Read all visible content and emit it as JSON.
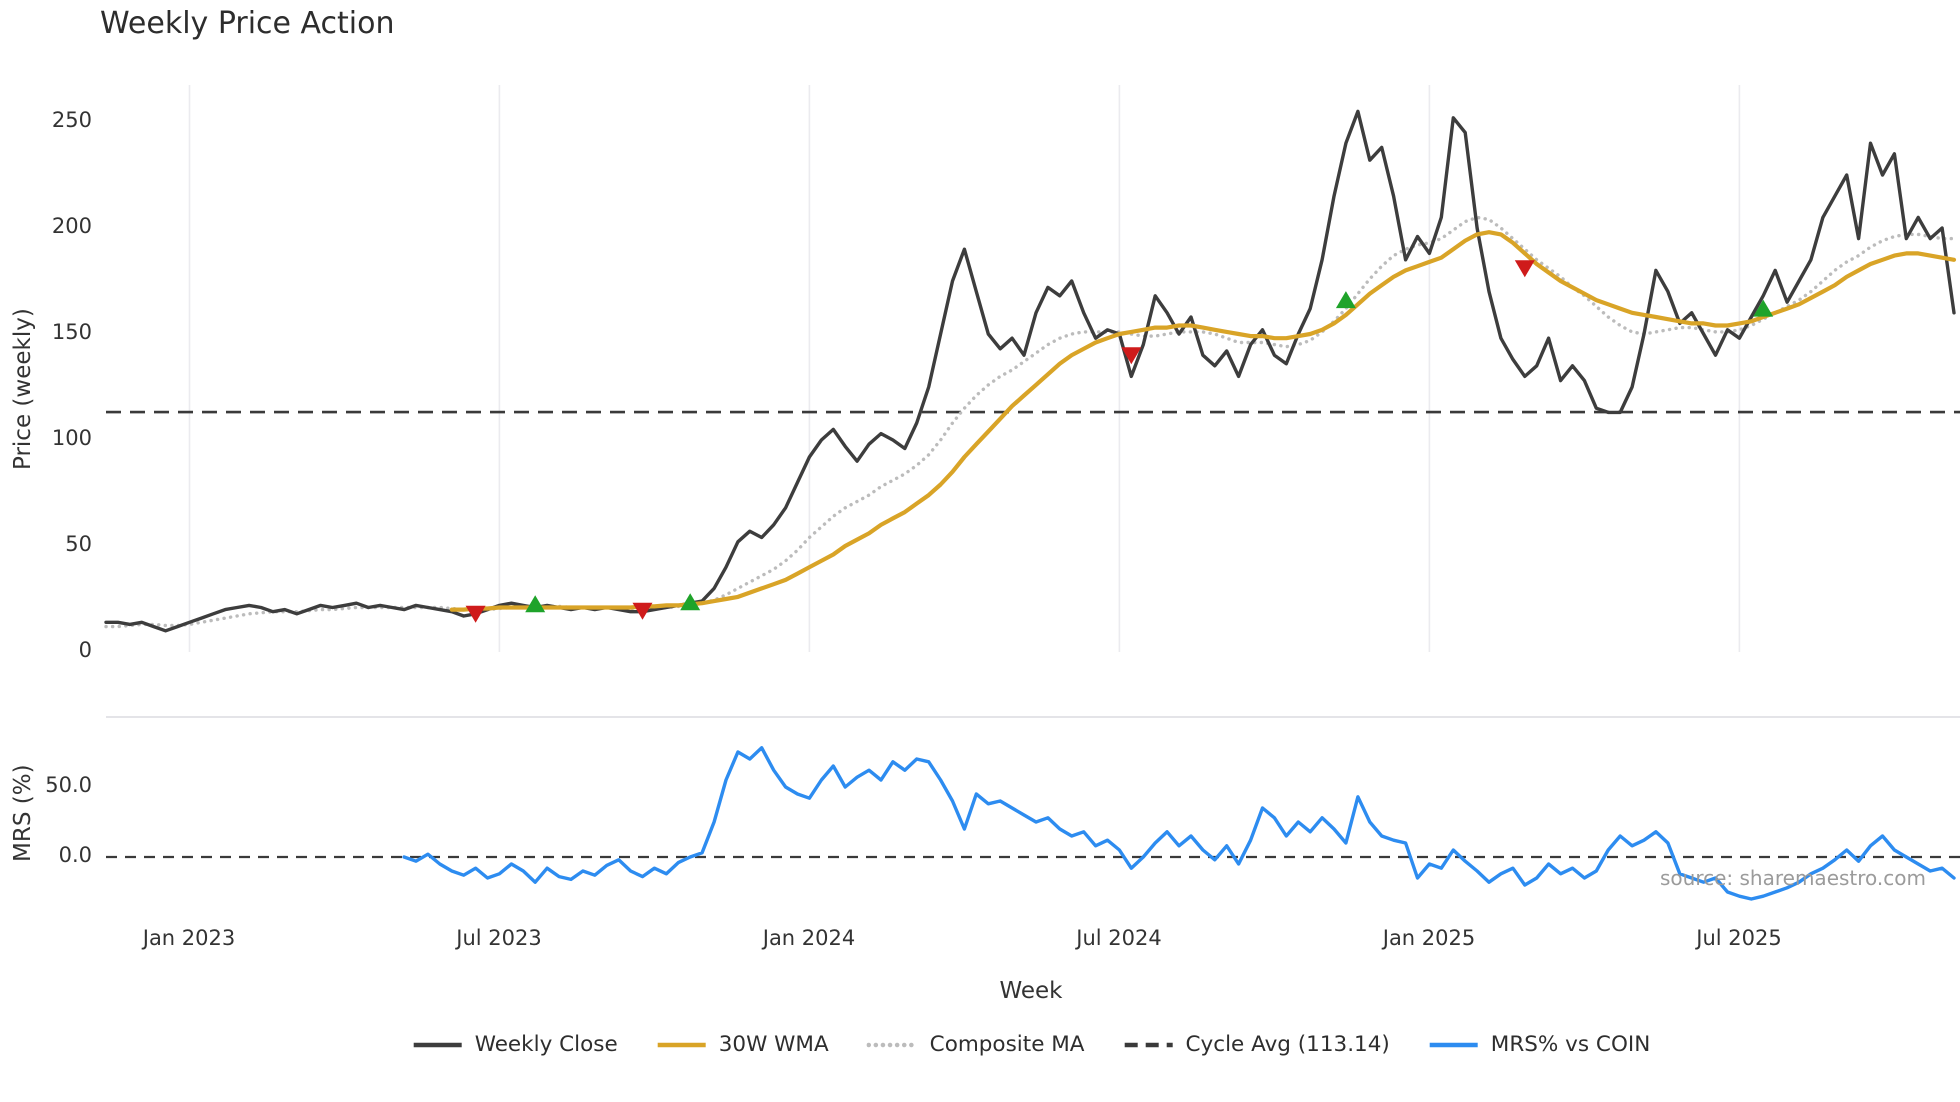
{
  "source_note": "source: sharemaestro.com",
  "chart_data": {
    "type": "line",
    "title": "Weekly Price Action",
    "xlabel": "Week",
    "x_unit": "week_index",
    "x_range": [
      0,
      155
    ],
    "x_ticks": [
      {
        "week": 7,
        "label": "Jan 2023"
      },
      {
        "week": 33,
        "label": "Jul 2023"
      },
      {
        "week": 59,
        "label": "Jan 2024"
      },
      {
        "week": 85,
        "label": "Jul 2024"
      },
      {
        "week": 111,
        "label": "Jan 2025"
      },
      {
        "week": 137,
        "label": "Jul 2025"
      }
    ],
    "panels": [
      {
        "id": "price",
        "ylabel": "Price (weekly)",
        "ylim": [
          0,
          267
        ],
        "yticks": [
          {
            "value": 0,
            "label": "0"
          },
          {
            "value": 50,
            "label": "50"
          },
          {
            "value": 100,
            "label": "100"
          },
          {
            "value": 150,
            "label": "150"
          },
          {
            "value": 200,
            "label": "200"
          },
          {
            "value": 250,
            "label": "250"
          }
        ],
        "grid": "vertical",
        "reference_line": {
          "label": "Cycle Avg (113.14)",
          "value": 113.14,
          "style": "dashed",
          "color": "#3a3a3a"
        },
        "series": [
          {
            "name": "Weekly Close",
            "color": "#3d3d3d",
            "style": "solid",
            "width": 3.4,
            "x_start": 0,
            "values": [
              14,
              14,
              13,
              14,
              12,
              10,
              12,
              14,
              16,
              18,
              20,
              21,
              22,
              21,
              19,
              20,
              18,
              20,
              22,
              21,
              22,
              23,
              21,
              22,
              21,
              20,
              22,
              21,
              20,
              19,
              17,
              18,
              20,
              22,
              23,
              22,
              21,
              22,
              21,
              20,
              21,
              20,
              21,
              20,
              19,
              19,
              20,
              21,
              22,
              23,
              24,
              30,
              40,
              52,
              57,
              54,
              60,
              68,
              80,
              92,
              100,
              105,
              97,
              90,
              98,
              103,
              100,
              96,
              108,
              125,
              150,
              175,
              190,
              170,
              150,
              143,
              148,
              140,
              160,
              172,
              168,
              175,
              160,
              148,
              152,
              150,
              130,
              145,
              168,
              160,
              150,
              158,
              140,
              135,
              142,
              130,
              145,
              152,
              140,
              136,
              150,
              162,
              185,
              215,
              240,
              255,
              232,
              238,
              215,
              185,
              196,
              188,
              205,
              252,
              245,
              200,
              170,
              148,
              138,
              130,
              135,
              148,
              128,
              135,
              128,
              115,
              113,
              113,
              125,
              150,
              180,
              170,
              155,
              160,
              150,
              140,
              152,
              148,
              158,
              168,
              180,
              165,
              175,
              185,
              205,
              215,
              225,
              195,
              240,
              225,
              235,
              195,
              205,
              195,
              200,
              160
            ]
          },
          {
            "name": "30W WMA",
            "color": "#d9a427",
            "style": "solid",
            "width": 4.2,
            "x_start": 29,
            "values": [
              20,
              20,
              20.5,
              20.5,
              21,
              21,
              21,
              21,
              21,
              21,
              21,
              21,
              21,
              21,
              21,
              21,
              21.5,
              21.5,
              22,
              22,
              22.5,
              23,
              24,
              25,
              26,
              28,
              30,
              32,
              34,
              37,
              40,
              43,
              46,
              50,
              53,
              56,
              60,
              63,
              66,
              70,
              74,
              79,
              85,
              92,
              98,
              104,
              110,
              116,
              121,
              126,
              131,
              136,
              140,
              143,
              146,
              148,
              150,
              151,
              152,
              153,
              153,
              154,
              154,
              153,
              152,
              151,
              150,
              149,
              149,
              148,
              148,
              149,
              150,
              152,
              155,
              159,
              164,
              169,
              173,
              177,
              180,
              182,
              184,
              186,
              190,
              194,
              197,
              198,
              197,
              193,
              188,
              183,
              179,
              175,
              172,
              169,
              166,
              164,
              162,
              160,
              159,
              158,
              157,
              156,
              155,
              155,
              154,
              154,
              155,
              156,
              158,
              160,
              162,
              164,
              167,
              170,
              173,
              177,
              180,
              183,
              185,
              187,
              188,
              188,
              187,
              186,
              185
            ]
          },
          {
            "name": "Composite MA",
            "color": "#bcbcbc",
            "style": "dotted",
            "width": 3.4,
            "x_start": 0,
            "values": [
              12,
              12,
              12.5,
              13,
              13,
              12.5,
              12.5,
              13,
              14,
              15,
              16,
              17,
              18,
              18.5,
              19,
              19,
              19,
              19.5,
              20,
              20,
              20.5,
              21,
              21,
              21,
              21,
              21,
              21,
              21,
              21,
              20.5,
              20,
              20,
              20,
              20.5,
              21,
              21,
              21.5,
              21.5,
              21.5,
              21,
              21,
              21,
              21,
              21,
              20.5,
              20.5,
              20.5,
              21,
              21.5,
              22,
              23,
              24.5,
              27,
              30,
              33,
              36,
              39,
              43,
              48,
              54,
              59,
              64,
              68,
              71,
              74,
              78,
              81,
              84,
              88,
              93,
              100,
              108,
              115,
              121,
              126,
              130,
              133,
              137,
              141,
              145,
              148,
              150,
              151,
              151,
              151,
              151,
              150,
              149,
              149,
              150,
              151,
              151,
              151,
              150,
              148,
              146,
              146,
              146,
              145,
              144,
              145,
              147,
              151,
              156,
              162,
              169,
              176,
              182,
              187,
              190,
              192,
              193,
              195,
              199,
              203,
              205,
              204,
              200,
              195,
              190,
              185,
              181,
              177,
              172,
              168,
              163,
              158,
              154,
              151,
              150,
              151,
              152,
              153,
              153,
              152,
              151,
              151,
              152,
              154,
              157,
              160,
              163,
              166,
              170,
              175,
              180,
              184,
              187,
              191,
              194,
              196,
              197,
              197,
              196,
              195,
              195
            ]
          }
        ],
        "markers": {
          "buy": {
            "shape": "triangle-up",
            "color": "#1fa32a",
            "points": [
              {
                "week": 36,
                "price": 22.5
              },
              {
                "week": 49,
                "price": 23.5
              },
              {
                "week": 104,
                "price": 166
              },
              {
                "week": 139,
                "price": 162
              }
            ]
          },
          "sell": {
            "shape": "triangle-down",
            "color": "#cf1b1b",
            "points": [
              {
                "week": 31,
                "price": 18
              },
              {
                "week": 45,
                "price": 19.5
              },
              {
                "week": 86,
                "price": 140
              },
              {
                "week": 119,
                "price": 181
              }
            ]
          }
        }
      },
      {
        "id": "mrs",
        "ylabel": "MRS (%)",
        "ylim": [
          -42,
          100
        ],
        "yticks": [
          {
            "value": 0,
            "label": "0.0"
          },
          {
            "value": 50,
            "label": "50.0"
          }
        ],
        "zero_line": {
          "value": 0,
          "style": "dashed",
          "color": "#3a3a3a"
        },
        "series": [
          {
            "name": "MRS% vs COIN",
            "color": "#2d8cf0",
            "style": "solid",
            "width": 3.4,
            "x_start": 25,
            "values": [
              0,
              -3,
              2,
              -5,
              -10,
              -13,
              -8,
              -15,
              -12,
              -5,
              -10,
              -18,
              -8,
              -14,
              -16,
              -10,
              -13,
              -6,
              -2,
              -10,
              -14,
              -8,
              -12,
              -4,
              0,
              3,
              25,
              55,
              75,
              70,
              78,
              62,
              50,
              45,
              42,
              55,
              65,
              50,
              57,
              62,
              55,
              68,
              62,
              70,
              68,
              55,
              40,
              20,
              45,
              38,
              40,
              35,
              30,
              25,
              28,
              20,
              15,
              18,
              8,
              12,
              5,
              -8,
              0,
              10,
              18,
              8,
              15,
              5,
              -2,
              8,
              -5,
              12,
              35,
              28,
              15,
              25,
              18,
              28,
              20,
              10,
              43,
              25,
              15,
              12,
              10,
              -15,
              -5,
              -8,
              5,
              -3,
              -10,
              -18,
              -12,
              -8,
              -20,
              -15,
              -5,
              -12,
              -8,
              -15,
              -10,
              5,
              15,
              8,
              12,
              18,
              10,
              -12,
              -15,
              -18,
              -15,
              -25,
              -28,
              -30,
              -28,
              -25,
              -22,
              -18,
              -12,
              -8,
              -2,
              5,
              -3,
              8,
              15,
              5,
              0,
              -5,
              -10,
              -8,
              -15
            ]
          }
        ]
      }
    ],
    "legend": [
      {
        "label": "Weekly Close",
        "color": "#3d3d3d",
        "line": "solid"
      },
      {
        "label": "30W WMA",
        "color": "#d9a427",
        "line": "solid"
      },
      {
        "label": "Composite MA",
        "color": "#bcbcbc",
        "line": "dotted"
      },
      {
        "label": "Cycle Avg (113.14)",
        "color": "#3a3a3a",
        "line": "dashed"
      },
      {
        "label": "MRS% vs COIN",
        "color": "#2d8cf0",
        "line": "solid"
      }
    ],
    "legend_position": "bottom-center",
    "grid": "vertical-light"
  }
}
